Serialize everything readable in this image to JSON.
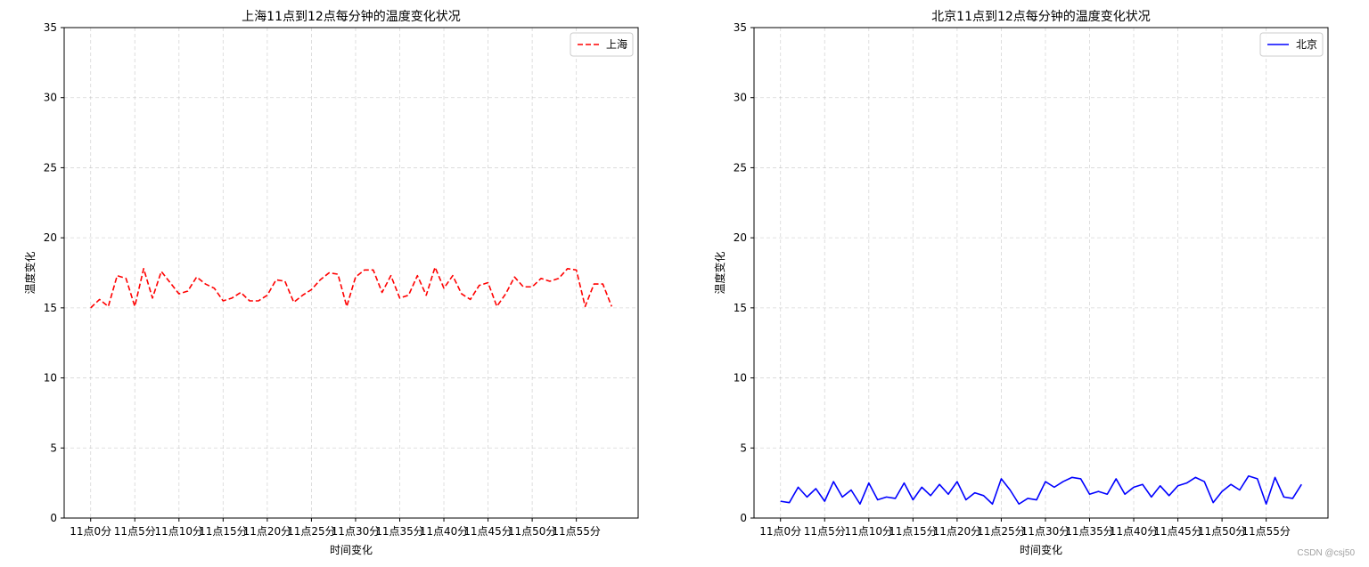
{
  "watermark": "CSDN @csj50",
  "chart_data": [
    {
      "type": "line",
      "title": "上海11点到12点每分钟的温度变化状况",
      "xlabel": "时间变化",
      "ylabel": "温度变化",
      "ylim": [
        0,
        35
      ],
      "yticks": [
        0,
        5,
        10,
        15,
        20,
        25,
        30,
        35
      ],
      "grid": true,
      "legend_position": "top-right",
      "xtick_labels": [
        "11点0分",
        "11点5分",
        "11点10分",
        "11点15分",
        "11点20分",
        "11点25分",
        "11点30分",
        "11点35分",
        "11点40分",
        "11点45分",
        "11点50分",
        "11点55分"
      ],
      "series": [
        {
          "name": "上海",
          "color": "#ff0000",
          "line_style": "dashed",
          "values": [
            15.0,
            15.6,
            15.1,
            17.3,
            17.1,
            15.1,
            17.8,
            15.7,
            17.6,
            16.8,
            16.0,
            16.2,
            17.2,
            16.7,
            16.4,
            15.5,
            15.7,
            16.1,
            15.5,
            15.5,
            15.9,
            17.0,
            16.9,
            15.4,
            15.9,
            16.3,
            17.0,
            17.5,
            17.4,
            15.1,
            17.2,
            17.7,
            17.7,
            16.1,
            17.3,
            15.7,
            15.9,
            17.3,
            15.9,
            17.9,
            16.4,
            17.3,
            16.0,
            15.6,
            16.6,
            16.8,
            15.1,
            16.0,
            17.2,
            16.5,
            16.5,
            17.1,
            16.9,
            17.1,
            17.8,
            17.7,
            15.1,
            16.7,
            16.7,
            15.1
          ]
        }
      ]
    },
    {
      "type": "line",
      "title": "北京11点到12点每分钟的温度变化状况",
      "xlabel": "时间变化",
      "ylabel": "温度变化",
      "ylim": [
        0,
        35
      ],
      "yticks": [
        0,
        5,
        10,
        15,
        20,
        25,
        30,
        35
      ],
      "grid": true,
      "legend_position": "top-right",
      "xtick_labels": [
        "11点0分",
        "11点5分",
        "11点10分",
        "11点15分",
        "11点20分",
        "11点25分",
        "11点30分",
        "11点35分",
        "11点40分",
        "11点45分",
        "11点50分",
        "11点55分"
      ],
      "series": [
        {
          "name": "北京",
          "color": "#0000ff",
          "line_style": "solid",
          "values": [
            1.2,
            1.1,
            2.2,
            1.5,
            2.1,
            1.2,
            2.6,
            1.5,
            2.0,
            1.0,
            2.5,
            1.3,
            1.5,
            1.4,
            2.5,
            1.3,
            2.2,
            1.6,
            2.4,
            1.7,
            2.6,
            1.3,
            1.8,
            1.6,
            1.0,
            2.8,
            2.0,
            1.0,
            1.4,
            1.3,
            2.6,
            2.2,
            2.6,
            2.9,
            2.8,
            1.7,
            1.9,
            1.7,
            2.8,
            1.7,
            2.2,
            2.4,
            1.5,
            2.3,
            1.6,
            2.3,
            2.5,
            2.9,
            2.6,
            1.1,
            1.9,
            2.4,
            2.0,
            3.0,
            2.8,
            1.0,
            2.9,
            1.5,
            1.4,
            2.4
          ]
        }
      ]
    }
  ]
}
